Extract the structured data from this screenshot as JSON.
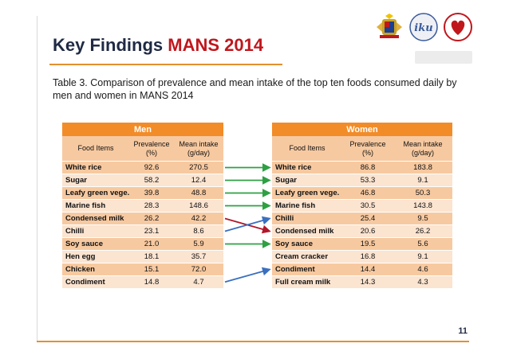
{
  "title": {
    "main": "Key Findings",
    "accent": "MANS 2014"
  },
  "caption": "Table 3. Comparison of prevalence and mean intake of the top ten foods consumed daily by men and women in MANS 2014",
  "page_number": "11",
  "columns": {
    "food": "Food Items",
    "prevalence": "Prevalence (%)",
    "mean_intake": "Mean intake (g/day)"
  },
  "men": {
    "label": "Men",
    "rows": [
      {
        "food": "White rice",
        "prevalence": "92.6",
        "mean": "270.5"
      },
      {
        "food": "Sugar",
        "prevalence": "58.2",
        "mean": "12.4"
      },
      {
        "food": "Leafy green vege.",
        "prevalence": "39.8",
        "mean": "48.8"
      },
      {
        "food": "Marine fish",
        "prevalence": "28.3",
        "mean": "148.6"
      },
      {
        "food": "Condensed milk",
        "prevalence": "26.2",
        "mean": "42.2"
      },
      {
        "food": "Chilli",
        "prevalence": "23.1",
        "mean": "8.6"
      },
      {
        "food": "Soy sauce",
        "prevalence": "21.0",
        "mean": "5.9"
      },
      {
        "food": "Hen egg",
        "prevalence": "18.1",
        "mean": "35.7"
      },
      {
        "food": "Chicken",
        "prevalence": "15.1",
        "mean": "72.0"
      },
      {
        "food": "Condiment",
        "prevalence": "14.8",
        "mean": "4.7"
      }
    ]
  },
  "women": {
    "label": "Women",
    "rows": [
      {
        "food": "White rice",
        "prevalence": "86.8",
        "mean": "183.8"
      },
      {
        "food": "Sugar",
        "prevalence": "53.3",
        "mean": "9.1"
      },
      {
        "food": "Leafy green vege.",
        "prevalence": "46.8",
        "mean": "50.3"
      },
      {
        "food": "Marine fish",
        "prevalence": "30.5",
        "mean": "143.8"
      },
      {
        "food": "Chilli",
        "prevalence": "25.4",
        "mean": "9.5"
      },
      {
        "food": "Condensed milk",
        "prevalence": "20.6",
        "mean": "26.2"
      },
      {
        "food": "Soy sauce",
        "prevalence": "19.5",
        "mean": "5.6"
      },
      {
        "food": "Cream cracker",
        "prevalence": "16.8",
        "mean": "9.1"
      },
      {
        "food": "Condiment",
        "prevalence": "14.4",
        "mean": "4.6"
      },
      {
        "food": "Full cream milk",
        "prevalence": "14.3",
        "mean": "4.3"
      }
    ]
  },
  "links": [
    {
      "from": 0,
      "to": 0,
      "color": "#2ea043"
    },
    {
      "from": 1,
      "to": 1,
      "color": "#2ea043"
    },
    {
      "from": 2,
      "to": 2,
      "color": "#2ea043"
    },
    {
      "from": 3,
      "to": 3,
      "color": "#2ea043"
    },
    {
      "from": 4,
      "to": 5,
      "color": "#b0182a"
    },
    {
      "from": 5,
      "to": 4,
      "color": "#3a6fbf"
    },
    {
      "from": 6,
      "to": 6,
      "color": "#2ea043"
    },
    {
      "from": 9,
      "to": 8,
      "color": "#3a6fbf"
    }
  ],
  "logos": [
    "malaysia-coat-of-arms-icon",
    "iku-logo-icon",
    "heart-logo-icon"
  ]
}
